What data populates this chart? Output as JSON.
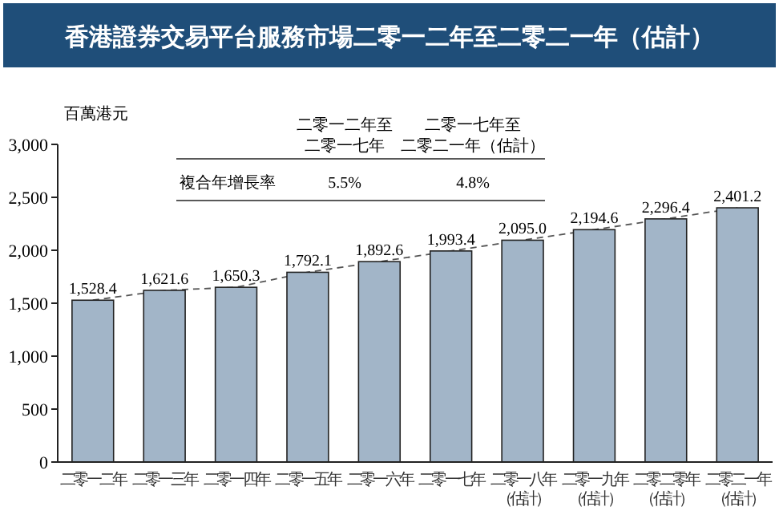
{
  "chart_data": {
    "type": "bar",
    "title": "香港證券交易平台服務市場二零一二年至二零二一年（估計）",
    "ylabel": "百萬港元",
    "categories": [
      "二零一二年",
      "二零一三年",
      "二零一四年",
      "二零一五年",
      "二零一六年",
      "二零一七年",
      "二零一八年（估計）",
      "二零一九年（估計）",
      "二零二零年（估計）",
      "二零二一年（估計）"
    ],
    "series": [
      {
        "color": "#a2b5c8",
        "values": [
          1528.4,
          1621.6,
          1650.3,
          1792.1,
          1892.6,
          1993.4,
          2095.0,
          2194.6,
          2296.4,
          2401.2
        ],
        "value_labels": [
          "1,528.4",
          "1,621.6",
          "1,650.3",
          "1,792.1",
          "1,892.6",
          "1,993.4",
          "2,095.0",
          "2,194.6",
          "2,296.4",
          "2,401.2"
        ]
      },
      {
        "type": "line",
        "color": "#555555",
        "line_style": "dashed",
        "values": [
          1528.4,
          1621.6,
          1650.3,
          1792.1,
          1892.6,
          1993.4,
          2095.0,
          2194.6,
          2296.4,
          2401.2
        ]
      }
    ],
    "ylim": [
      0,
      3000
    ],
    "yticks": [
      {
        "value": 0,
        "label": "0"
      },
      {
        "value": 500,
        "label": "500"
      },
      {
        "value": 1000,
        "label": "1,000"
      },
      {
        "value": 1500,
        "label": "1,500"
      },
      {
        "value": 2000,
        "label": "2,000"
      },
      {
        "value": 2500,
        "label": "2,500"
      },
      {
        "value": 3000,
        "label": "3,000"
      }
    ],
    "grid": false,
    "annotations": [
      "二零一二年至",
      "二零一七年",
      "二零一七年至",
      "二零二一年（估計）",
      "複合年增長率",
      "5.5%",
      "4.8%"
    ]
  }
}
